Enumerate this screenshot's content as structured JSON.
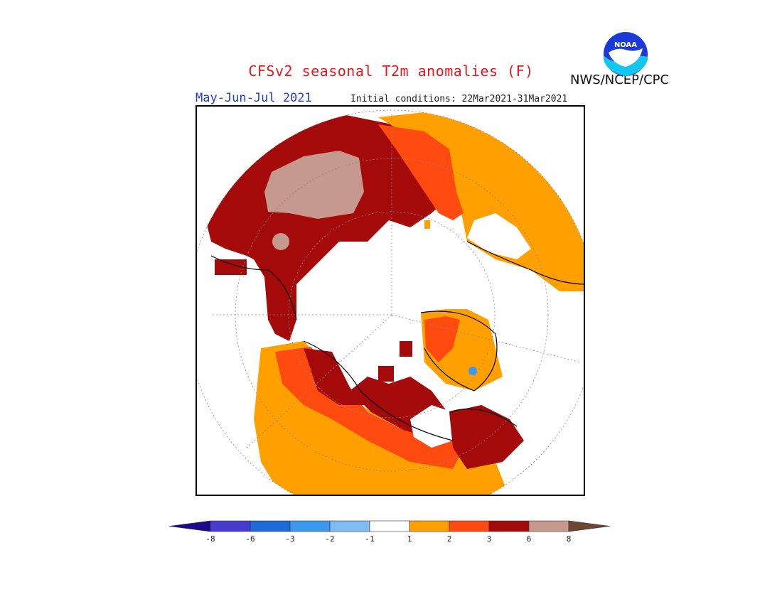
{
  "header": {
    "title": "CFSv2 seasonal T2m anomalies (F)",
    "period": "May-Jun-Jul 2021",
    "initial_conditions": "Initial conditions: 22Mar2021-31Mar2021",
    "agency": "NWS/NCEP/CPC",
    "logo_text": "NOAA"
  },
  "legend": {
    "colors": [
      "#1c0a8a",
      "#4a3bd0",
      "#1e6ad8",
      "#3a98ee",
      "#7fbcf3",
      "#ffffff",
      "#ffa000",
      "#ff4a10",
      "#a50a0a",
      "#c6998e",
      "#6e4633"
    ],
    "labels": [
      "-8",
      "-6",
      "-3",
      "-2",
      "-1",
      "1",
      "2",
      "3",
      "6",
      "8"
    ]
  },
  "map": {
    "projection": "north-polar-stereographic",
    "colors": {
      "anom_1_2": "#ffa000",
      "anom_2_3": "#ff4a10",
      "anom_3_6": "#a50a0a",
      "anom_6_8": "#c6998e",
      "anom_neg_2_3": "#3a98ee",
      "neutral": "#ffffff",
      "coast": "#000000"
    }
  }
}
